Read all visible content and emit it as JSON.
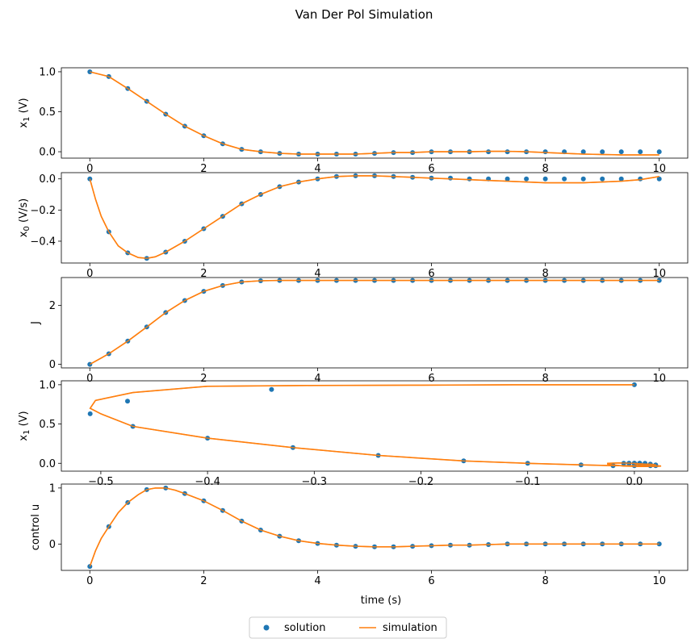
{
  "title": "Van Der Pol Simulation",
  "legend": {
    "location": "bottom-center",
    "entries": [
      {
        "label": "solution",
        "marker": "circle",
        "color": "#1f77b4"
      },
      {
        "label": "simulation",
        "marker": "line",
        "color": "#ff7f0e"
      }
    ]
  },
  "chart_data": [
    {
      "type": "scatter",
      "ylabel_main": "x",
      "ylabel_sub": "1",
      "ylabel_unit": " (V)",
      "xlabel": "",
      "xlim": [
        -0.5,
        10.5
      ],
      "ylim": [
        -0.08,
        1.05
      ],
      "xticks": [
        0,
        2,
        4,
        6,
        8,
        10
      ],
      "yticks": [
        {
          "v": 0.0,
          "label": "0.0"
        },
        {
          "v": 0.5,
          "label": "0.5"
        },
        {
          "v": 1.0,
          "label": "1.0"
        }
      ],
      "grid": false,
      "series": [
        {
          "name": "solution",
          "type": "scatter",
          "color": "#1f77b4",
          "x": [
            0,
            0.333,
            0.667,
            1,
            1.333,
            1.667,
            2,
            2.333,
            2.667,
            3,
            3.333,
            3.667,
            4,
            4.333,
            4.667,
            5,
            5.333,
            5.667,
            6,
            6.333,
            6.667,
            7,
            7.333,
            7.667,
            8,
            8.333,
            8.667,
            9,
            9.333,
            9.667,
            10
          ],
          "y": [
            1.0,
            0.94,
            0.79,
            0.63,
            0.47,
            0.32,
            0.2,
            0.1,
            0.03,
            0.0,
            -0.02,
            -0.03,
            -0.03,
            -0.03,
            -0.03,
            -0.02,
            -0.01,
            -0.01,
            0.0,
            0.0,
            0.0,
            0.0,
            0.0,
            0.0,
            0.0,
            0.0,
            0.0,
            0.0,
            0.0,
            0.0,
            0.0
          ]
        },
        {
          "name": "simulation",
          "type": "line",
          "color": "#ff7f0e",
          "x": [
            0,
            0.333,
            0.667,
            1,
            1.333,
            1.667,
            2,
            2.333,
            2.667,
            3,
            3.333,
            3.667,
            4,
            4.333,
            4.667,
            5,
            5.333,
            5.667,
            6,
            6.333,
            6.667,
            7,
            7.333,
            7.667,
            8,
            8.333,
            8.667,
            9,
            9.333,
            9.667,
            10
          ],
          "y": [
            1.0,
            0.94,
            0.79,
            0.63,
            0.47,
            0.32,
            0.2,
            0.1,
            0.03,
            0.0,
            -0.02,
            -0.03,
            -0.03,
            -0.03,
            -0.03,
            -0.02,
            -0.01,
            -0.01,
            0.0,
            0.0,
            0.0,
            0.005,
            0.005,
            0.0,
            -0.01,
            -0.02,
            -0.03,
            -0.035,
            -0.04,
            -0.04,
            -0.04
          ]
        }
      ]
    },
    {
      "type": "scatter",
      "ylabel_main": "x",
      "ylabel_sub": "0",
      "ylabel_unit": " (V/s)",
      "xlabel": "",
      "xlim": [
        -0.5,
        10.5
      ],
      "ylim": [
        -0.54,
        0.04
      ],
      "xticks": [
        0,
        2,
        4,
        6,
        8,
        10
      ],
      "yticks": [
        {
          "v": 0.0,
          "label": "0.0"
        },
        {
          "v": -0.2,
          "label": "−0.2"
        },
        {
          "v": -0.4,
          "label": "−0.4"
        }
      ],
      "grid": false,
      "series": [
        {
          "name": "solution",
          "type": "scatter",
          "color": "#1f77b4",
          "x": [
            0,
            0.333,
            0.667,
            1,
            1.333,
            1.667,
            2,
            2.333,
            2.667,
            3,
            3.333,
            3.667,
            4,
            4.333,
            4.667,
            5,
            5.333,
            5.667,
            6,
            6.333,
            6.667,
            7,
            7.333,
            7.667,
            8,
            8.333,
            8.667,
            9,
            9.333,
            9.667,
            10
          ],
          "y": [
            0.0,
            -0.34,
            -0.475,
            -0.51,
            -0.47,
            -0.4,
            -0.32,
            -0.24,
            -0.16,
            -0.1,
            -0.05,
            -0.02,
            0.0,
            0.015,
            0.02,
            0.02,
            0.015,
            0.01,
            0.005,
            0.005,
            0.0,
            0.0,
            0.0,
            0.0,
            0.0,
            0.0,
            0.0,
            0.0,
            0.0,
            0.0,
            0.0
          ]
        },
        {
          "name": "simulation",
          "type": "line",
          "color": "#ff7f0e",
          "x": [
            0,
            0.1,
            0.2,
            0.333,
            0.5,
            0.667,
            0.85,
            1,
            1.15,
            1.333,
            1.667,
            2,
            2.333,
            2.667,
            3,
            3.333,
            3.667,
            4,
            4.333,
            4.667,
            5,
            5.333,
            5.667,
            6,
            6.333,
            6.667,
            7,
            7.333,
            7.667,
            8,
            8.333,
            8.667,
            9,
            9.333,
            9.667,
            10
          ],
          "y": [
            0.0,
            -0.13,
            -0.24,
            -0.34,
            -0.43,
            -0.475,
            -0.505,
            -0.51,
            -0.5,
            -0.47,
            -0.4,
            -0.32,
            -0.24,
            -0.16,
            -0.1,
            -0.05,
            -0.02,
            0.0,
            0.015,
            0.02,
            0.02,
            0.015,
            0.01,
            0.005,
            0.0,
            -0.005,
            -0.01,
            -0.015,
            -0.02,
            -0.025,
            -0.025,
            -0.025,
            -0.02,
            -0.015,
            -0.005,
            0.015
          ]
        }
      ]
    },
    {
      "type": "scatter",
      "ylabel_main": "J",
      "ylabel_sub": "",
      "ylabel_unit": "",
      "xlabel": "",
      "xlim": [
        -0.5,
        10.5
      ],
      "ylim": [
        -0.12,
        2.95
      ],
      "xticks": [
        0,
        2,
        4,
        6,
        8,
        10
      ],
      "yticks": [
        {
          "v": 0,
          "label": "0"
        },
        {
          "v": 2,
          "label": "2"
        }
      ],
      "grid": false,
      "series": [
        {
          "name": "solution",
          "type": "scatter",
          "color": "#1f77b4",
          "x": [
            0,
            0.333,
            0.667,
            1,
            1.333,
            1.667,
            2,
            2.333,
            2.667,
            3,
            3.333,
            3.667,
            4,
            4.333,
            4.667,
            5,
            5.333,
            5.667,
            6,
            6.333,
            6.667,
            7,
            7.333,
            7.667,
            8,
            8.333,
            8.667,
            9,
            9.333,
            9.667,
            10
          ],
          "y": [
            0.0,
            0.36,
            0.79,
            1.27,
            1.76,
            2.17,
            2.48,
            2.68,
            2.8,
            2.84,
            2.85,
            2.85,
            2.85,
            2.85,
            2.85,
            2.85,
            2.85,
            2.85,
            2.85,
            2.85,
            2.85,
            2.85,
            2.85,
            2.85,
            2.85,
            2.85,
            2.85,
            2.85,
            2.85,
            2.85,
            2.85
          ]
        },
        {
          "name": "simulation",
          "type": "line",
          "color": "#ff7f0e",
          "x": [
            0,
            0.333,
            0.667,
            1,
            1.333,
            1.667,
            2,
            2.333,
            2.667,
            3,
            3.333,
            3.667,
            4,
            4.333,
            4.667,
            5,
            5.333,
            5.667,
            6,
            6.333,
            6.667,
            7,
            7.333,
            7.667,
            8,
            8.333,
            8.667,
            9,
            9.333,
            9.667,
            10
          ],
          "y": [
            0.0,
            0.36,
            0.79,
            1.27,
            1.76,
            2.17,
            2.48,
            2.68,
            2.8,
            2.84,
            2.85,
            2.85,
            2.85,
            2.85,
            2.85,
            2.85,
            2.85,
            2.85,
            2.85,
            2.85,
            2.85,
            2.85,
            2.85,
            2.85,
            2.85,
            2.85,
            2.85,
            2.85,
            2.85,
            2.85,
            2.85
          ]
        }
      ]
    },
    {
      "type": "scatter",
      "ylabel_main": "x",
      "ylabel_sub": "1",
      "ylabel_unit": " (V)",
      "xlabel": "",
      "xlim": [
        -0.537,
        0.05
      ],
      "ylim": [
        -0.1,
        1.05
      ],
      "xticks": [
        {
          "v": -0.5,
          "label": "−0.5"
        },
        {
          "v": -0.4,
          "label": "−0.4"
        },
        {
          "v": -0.3,
          "label": "−0.3"
        },
        {
          "v": -0.2,
          "label": "−0.2"
        },
        {
          "v": -0.1,
          "label": "−0.1"
        },
        {
          "v": 0.0,
          "label": "0.0"
        }
      ],
      "yticks": [
        {
          "v": 0.0,
          "label": "0.0"
        },
        {
          "v": 0.5,
          "label": "0.5"
        },
        {
          "v": 1.0,
          "label": "1.0"
        }
      ],
      "grid": false,
      "series": [
        {
          "name": "solution",
          "type": "scatter",
          "color": "#1f77b4",
          "x": [
            0.0,
            -0.34,
            -0.475,
            -0.51,
            -0.47,
            -0.4,
            -0.32,
            -0.24,
            -0.16,
            -0.1,
            -0.05,
            -0.02,
            0.0,
            0.015,
            0.02,
            0.02,
            0.015,
            0.01,
            0.005,
            0.005,
            0.0,
            -0.005,
            -0.01,
            -0.005,
            0.0,
            0.005,
            0.01,
            0.0,
            -0.005,
            0.005,
            0.0
          ],
          "y": [
            1.0,
            0.94,
            0.79,
            0.63,
            0.47,
            0.32,
            0.2,
            0.1,
            0.03,
            0.0,
            -0.02,
            -0.03,
            -0.03,
            -0.03,
            -0.03,
            -0.02,
            -0.01,
            -0.01,
            0.0,
            0.0,
            0.0,
            0.0,
            0.0,
            0.0,
            0.0,
            0.0,
            0.0,
            0.0,
            0.0,
            0.0,
            0.0
          ]
        },
        {
          "name": "simulation",
          "type": "line",
          "color": "#ff7f0e",
          "x": [
            0.0,
            -0.1,
            -0.2,
            -0.3,
            -0.4,
            -0.47,
            -0.505,
            -0.51,
            -0.5,
            -0.47,
            -0.4,
            -0.32,
            -0.24,
            -0.16,
            -0.1,
            -0.05,
            -0.02,
            0.0,
            0.015,
            0.02,
            0.02,
            0.015,
            0.01,
            0.0,
            -0.015,
            -0.025,
            -0.025,
            -0.02,
            -0.01,
            0.005,
            0.02,
            0.025,
            0.02,
            0.01,
            0.0
          ],
          "y": [
            1.0,
            1.0,
            0.995,
            0.99,
            0.98,
            0.9,
            0.8,
            0.7,
            0.63,
            0.47,
            0.32,
            0.2,
            0.1,
            0.03,
            0.0,
            -0.02,
            -0.03,
            -0.03,
            -0.03,
            -0.03,
            -0.02,
            -0.01,
            -0.01,
            0.0,
            0.005,
            0.0,
            -0.01,
            -0.02,
            -0.035,
            -0.04,
            -0.04,
            -0.035,
            -0.03,
            -0.02,
            -0.01
          ]
        }
      ]
    },
    {
      "type": "scatter",
      "ylabel_main": "control u",
      "ylabel_sub": "",
      "ylabel_unit": "",
      "xlabel": "time (s)",
      "xlim": [
        -0.5,
        10.5
      ],
      "ylim": [
        -0.47,
        1.07
      ],
      "xticks": [
        0,
        2,
        4,
        6,
        8,
        10
      ],
      "yticks": [
        {
          "v": 0,
          "label": "0"
        },
        {
          "v": 1,
          "label": "1"
        }
      ],
      "grid": false,
      "series": [
        {
          "name": "solution",
          "type": "scatter",
          "color": "#1f77b4",
          "x": [
            0,
            0.333,
            0.667,
            1,
            1.333,
            1.667,
            2,
            2.333,
            2.667,
            3,
            3.333,
            3.667,
            4,
            4.333,
            4.667,
            5,
            5.333,
            5.667,
            6,
            6.333,
            6.667,
            7,
            7.333,
            7.667,
            8,
            8.333,
            8.667,
            9,
            9.333,
            9.667,
            10
          ],
          "y": [
            -0.4,
            0.31,
            0.74,
            0.97,
            1.0,
            0.9,
            0.77,
            0.6,
            0.41,
            0.25,
            0.14,
            0.06,
            0.01,
            -0.02,
            -0.04,
            -0.05,
            -0.05,
            -0.04,
            -0.03,
            -0.02,
            -0.02,
            -0.01,
            0.0,
            0.0,
            0.0,
            0.0,
            0.0,
            0.0,
            0.0,
            0.0,
            0.0
          ]
        },
        {
          "name": "simulation",
          "type": "line",
          "color": "#ff7f0e",
          "x": [
            0,
            0.1,
            0.2,
            0.333,
            0.5,
            0.667,
            0.85,
            1,
            1.15,
            1.333,
            1.5,
            1.667,
            2,
            2.333,
            2.667,
            3,
            3.333,
            3.667,
            4,
            4.333,
            4.667,
            5,
            5.333,
            5.667,
            6,
            6.333,
            6.667,
            7,
            7.333,
            7.667,
            8,
            8.333,
            8.667,
            9,
            9.333,
            9.667,
            10
          ],
          "y": [
            -0.4,
            -0.12,
            0.1,
            0.31,
            0.56,
            0.74,
            0.88,
            0.97,
            1.0,
            1.0,
            0.96,
            0.9,
            0.77,
            0.6,
            0.41,
            0.25,
            0.14,
            0.06,
            0.01,
            -0.02,
            -0.04,
            -0.05,
            -0.05,
            -0.04,
            -0.03,
            -0.02,
            -0.02,
            -0.01,
            0.0,
            0.0,
            0.0,
            0.0,
            0.0,
            0.0,
            0.0,
            0.0,
            0.0
          ]
        }
      ]
    }
  ]
}
